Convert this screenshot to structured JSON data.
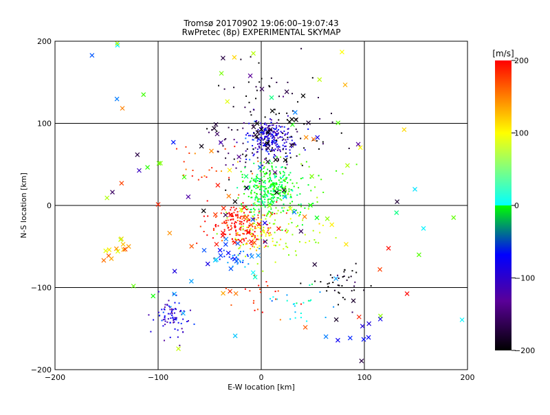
{
  "chart_data": {
    "type": "scatter",
    "title": "Tromsø 20170902 19:06:00–19:07:43",
    "subtitle": "RwPretec (8p) EXPERIMENTAL SKYMAP",
    "xlabel": "E-W location [km]",
    "ylabel": "N-S location [km]",
    "xlim": [
      -200,
      200
    ],
    "ylim": [
      -200,
      200
    ],
    "x_ticks": [
      "−200",
      "−100",
      "0",
      "100",
      "200"
    ],
    "y_ticks": [
      "200",
      "100",
      "0",
      "−100",
      "−200"
    ],
    "grid": "lines at ±100 and 0 km",
    "colorbar": {
      "label": "[m/s]",
      "range": [
        -200,
        200
      ],
      "ticks": [
        "200",
        "100",
        "0",
        "−100",
        "−200"
      ],
      "colormap": [
        "#000000",
        "#5a0098",
        "#0000ff",
        "#00ffff",
        "#00ff00",
        "#ffff00",
        "#ff0000"
      ]
    },
    "markers": {
      "dot": "small dots (clustered measurements)",
      "x": "crosses (sparse measurements)"
    },
    "clusters": [
      {
        "x": 10,
        "y": 78,
        "sx": 12,
        "sy": 10,
        "v": -115,
        "n": 180,
        "m": "dot"
      },
      {
        "x": 8,
        "y": 92,
        "sx": 8,
        "sy": 6,
        "v": -130,
        "n": 50,
        "m": "dot"
      },
      {
        "x": 10,
        "y": 68,
        "sx": 30,
        "sy": 20,
        "v": -200,
        "n": 80,
        "m": "dot"
      },
      {
        "x": 10,
        "y": 130,
        "sx": 30,
        "sy": 25,
        "v": -200,
        "n": 40,
        "m": "dot"
      },
      {
        "x": 10,
        "y": 18,
        "sx": 14,
        "sy": 16,
        "v": -5,
        "n": 320,
        "m": "dot"
      },
      {
        "x": 25,
        "y": 30,
        "sx": 25,
        "sy": 20,
        "v": 35,
        "n": 40,
        "m": "dot"
      },
      {
        "x": -20,
        "y": -25,
        "sx": 16,
        "sy": 12,
        "v": 195,
        "n": 170,
        "m": "dot"
      },
      {
        "x": -5,
        "y": -35,
        "sx": 10,
        "sy": 10,
        "v": 100,
        "n": 50,
        "m": "dot"
      },
      {
        "x": 12,
        "y": -30,
        "sx": 22,
        "sy": 18,
        "v": 70,
        "n": 90,
        "m": "dot"
      },
      {
        "x": -20,
        "y": -65,
        "sx": 8,
        "sy": 6,
        "v": -80,
        "n": 30,
        "m": "dot"
      },
      {
        "x": -88,
        "y": -135,
        "sx": 8,
        "sy": 14,
        "v": -120,
        "n": 80,
        "m": "dot"
      },
      {
        "x": 80,
        "y": -95,
        "sx": 15,
        "sy": 12,
        "v": -200,
        "n": 40,
        "m": "dot"
      },
      {
        "x": 35,
        "y": -120,
        "sx": 18,
        "sy": 10,
        "v": -50,
        "n": 25,
        "m": "dot"
      },
      {
        "x": -50,
        "y": 50,
        "sx": 20,
        "sy": 20,
        "v": 170,
        "n": 25,
        "m": "dot"
      },
      {
        "x": 10,
        "y": -110,
        "sx": 20,
        "sy": 15,
        "v": 190,
        "n": 20,
        "m": "dot"
      },
      {
        "x": -20,
        "y": 70,
        "sx": 25,
        "sy": 20,
        "v": -150,
        "n": 20,
        "m": "dot"
      },
      {
        "x": 0,
        "y": 0,
        "sx": 110,
        "sy": 110,
        "v": 0,
        "n": 120,
        "m": "x",
        "vmode": "random"
      },
      {
        "x": -140,
        "y": -50,
        "sx": 10,
        "sy": 8,
        "v": 130,
        "n": 12,
        "m": "x"
      },
      {
        "x": 10,
        "y": 80,
        "sx": 35,
        "sy": 30,
        "v": -200,
        "n": 25,
        "m": "x"
      },
      {
        "x": -20,
        "y": -30,
        "sx": 22,
        "sy": 15,
        "v": 200,
        "n": 18,
        "m": "x"
      },
      {
        "x": -30,
        "y": -60,
        "sx": 15,
        "sy": 10,
        "v": -85,
        "n": 14,
        "m": "x"
      },
      {
        "x": 110,
        "y": -150,
        "sx": 12,
        "sy": 12,
        "v": -110,
        "n": 6,
        "m": "x"
      }
    ]
  }
}
